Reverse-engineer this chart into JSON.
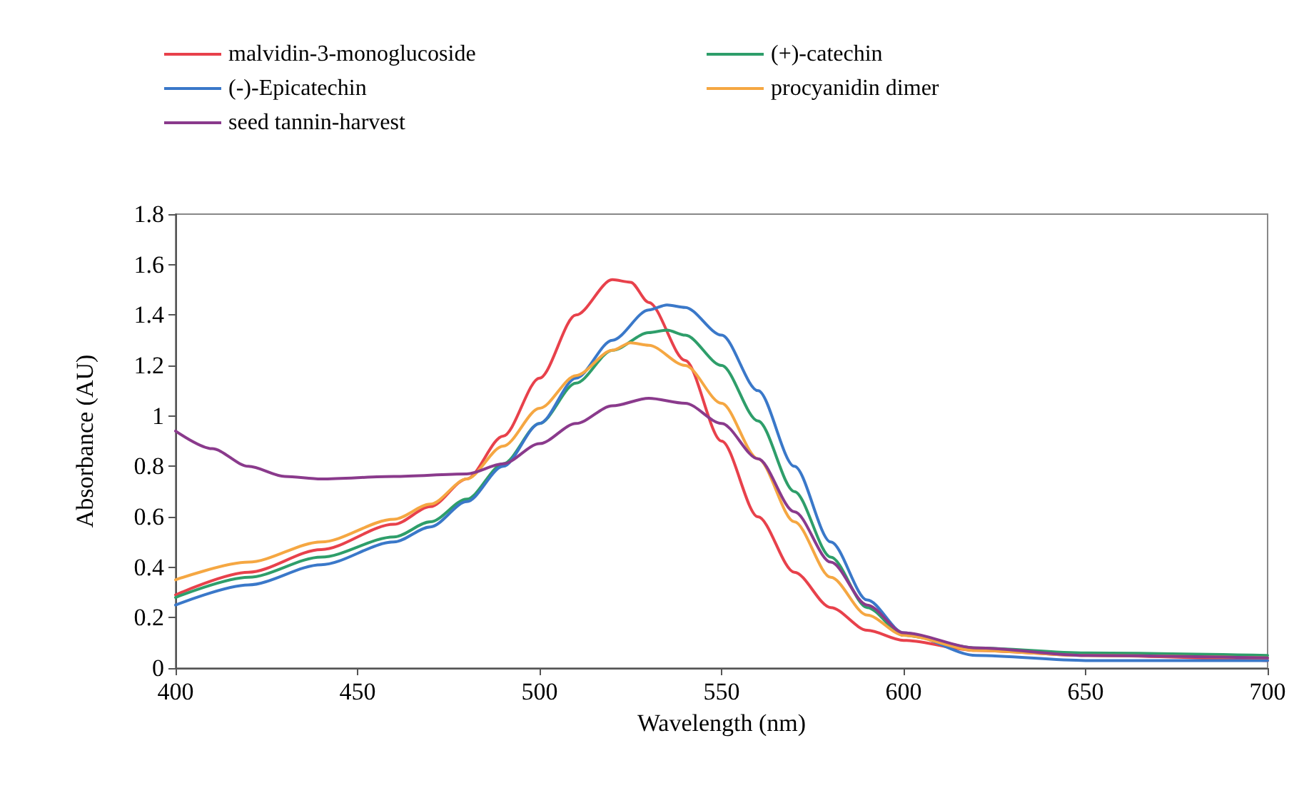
{
  "chart_data": {
    "type": "line",
    "xlabel": "Wavelength (nm)",
    "ylabel": "Absorbance (AU)",
    "xlim": [
      400,
      700
    ],
    "xticks": [
      400,
      450,
      500,
      550,
      600,
      650,
      700
    ],
    "ylim": [
      0,
      1.8
    ],
    "yticks": [
      0,
      0.2,
      0.4,
      0.6,
      0.8,
      1,
      1.2,
      1.4,
      1.6,
      1.8
    ],
    "grid": false,
    "legend": "top",
    "marker": "none",
    "line_style": "solid",
    "series": [
      {
        "name": "malvidin-3-monoglucoside",
        "color": "#e8414b",
        "x": [
          400,
          420,
          440,
          460,
          470,
          480,
          490,
          500,
          510,
          520,
          525,
          530,
          540,
          550,
          560,
          570,
          580,
          590,
          600,
          620,
          650,
          700
        ],
        "values": [
          0.29,
          0.38,
          0.47,
          0.57,
          0.64,
          0.75,
          0.92,
          1.15,
          1.4,
          1.54,
          1.53,
          1.45,
          1.22,
          0.9,
          0.6,
          0.38,
          0.24,
          0.15,
          0.11,
          0.07,
          0.05,
          0.03
        ]
      },
      {
        "name": "(+)-catechin",
        "color": "#2e9e6a",
        "x": [
          400,
          420,
          440,
          460,
          470,
          480,
          490,
          500,
          510,
          520,
          530,
          535,
          540,
          550,
          560,
          570,
          580,
          590,
          600,
          620,
          650,
          700
        ],
        "values": [
          0.28,
          0.36,
          0.44,
          0.52,
          0.58,
          0.67,
          0.81,
          0.97,
          1.13,
          1.26,
          1.33,
          1.34,
          1.32,
          1.2,
          0.98,
          0.7,
          0.44,
          0.24,
          0.13,
          0.08,
          0.06,
          0.05
        ]
      },
      {
        "name": "(-)-Epicatechin",
        "color": "#3a78c9",
        "x": [
          400,
          420,
          440,
          460,
          470,
          480,
          490,
          500,
          510,
          520,
          530,
          535,
          540,
          550,
          560,
          570,
          580,
          590,
          600,
          620,
          650,
          700
        ],
        "values": [
          0.25,
          0.33,
          0.41,
          0.5,
          0.56,
          0.66,
          0.8,
          0.97,
          1.15,
          1.3,
          1.42,
          1.44,
          1.43,
          1.32,
          1.1,
          0.8,
          0.5,
          0.27,
          0.14,
          0.05,
          0.03,
          0.03
        ]
      },
      {
        "name": "procyanidin dimer",
        "color": "#f5a742",
        "x": [
          400,
          420,
          440,
          460,
          470,
          480,
          490,
          500,
          510,
          520,
          525,
          530,
          540,
          550,
          560,
          570,
          580,
          590,
          600,
          620,
          650,
          700
        ],
        "values": [
          0.35,
          0.42,
          0.5,
          0.59,
          0.65,
          0.75,
          0.88,
          1.03,
          1.16,
          1.26,
          1.29,
          1.28,
          1.2,
          1.05,
          0.83,
          0.58,
          0.36,
          0.21,
          0.13,
          0.07,
          0.05,
          0.04
        ]
      },
      {
        "name": "seed tannin-harvest",
        "color": "#8a3a8c",
        "x": [
          400,
          410,
          420,
          430,
          440,
          460,
          480,
          490,
          500,
          510,
          520,
          530,
          540,
          550,
          560,
          570,
          580,
          590,
          600,
          620,
          650,
          700
        ],
        "values": [
          0.94,
          0.87,
          0.8,
          0.76,
          0.75,
          0.76,
          0.77,
          0.81,
          0.89,
          0.97,
          1.04,
          1.07,
          1.05,
          0.97,
          0.83,
          0.62,
          0.42,
          0.25,
          0.14,
          0.08,
          0.05,
          0.04
        ]
      }
    ]
  }
}
